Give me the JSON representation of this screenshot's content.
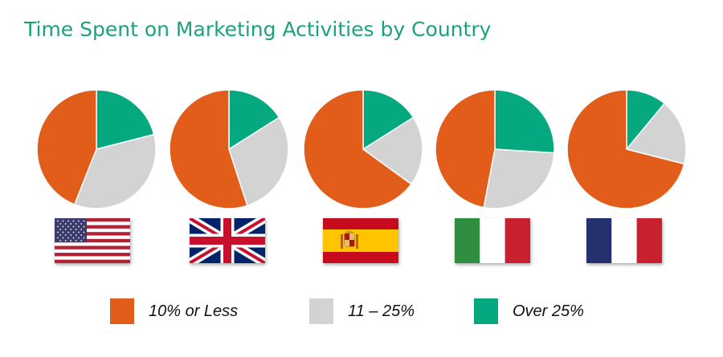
{
  "title": "Time Spent on Marketing Activities by Country",
  "colors": {
    "title": "#1aa37a",
    "series": [
      "#e25c1a",
      "#d3d3d3",
      "#06a880"
    ]
  },
  "chart_data": {
    "type": "pie",
    "title": "Time Spent on Marketing Activities by Country",
    "series_names": [
      "10% or Less",
      "11 – 25%",
      "Over 25%"
    ],
    "legend_position": "bottom",
    "charts": [
      {
        "country": "United States",
        "flag": "us-flag",
        "values": [
          44,
          35,
          21
        ]
      },
      {
        "country": "United Kingdom",
        "flag": "uk-flag",
        "values": [
          55,
          29,
          16
        ]
      },
      {
        "country": "Spain",
        "flag": "spain-flag",
        "values": [
          65,
          19,
          16
        ]
      },
      {
        "country": "Italy",
        "flag": "italy-flag",
        "values": [
          47,
          27,
          26
        ]
      },
      {
        "country": "France",
        "flag": "france-flag",
        "values": [
          71,
          18,
          11
        ]
      }
    ]
  },
  "legend": {
    "items": [
      {
        "label": "10% or Less"
      },
      {
        "label": "11 – 25%"
      },
      {
        "label": "Over 25%"
      }
    ]
  }
}
